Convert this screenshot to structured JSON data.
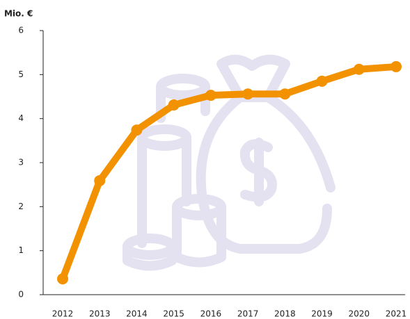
{
  "chart_data": {
    "type": "line",
    "y_axis_label": "Mio. €",
    "categories": [
      "2012",
      "2013",
      "2014",
      "2015",
      "2016",
      "2017",
      "2018",
      "2019",
      "2020",
      "2021"
    ],
    "series": [
      {
        "color": "#f39200",
        "values": [
          0.36,
          2.59,
          3.74,
          4.31,
          4.53,
          4.56,
          4.56,
          4.85,
          5.12,
          5.18
        ]
      }
    ],
    "ylim": [
      0,
      6
    ],
    "yticks": [
      0,
      1,
      2,
      3,
      4,
      5,
      6
    ]
  }
}
